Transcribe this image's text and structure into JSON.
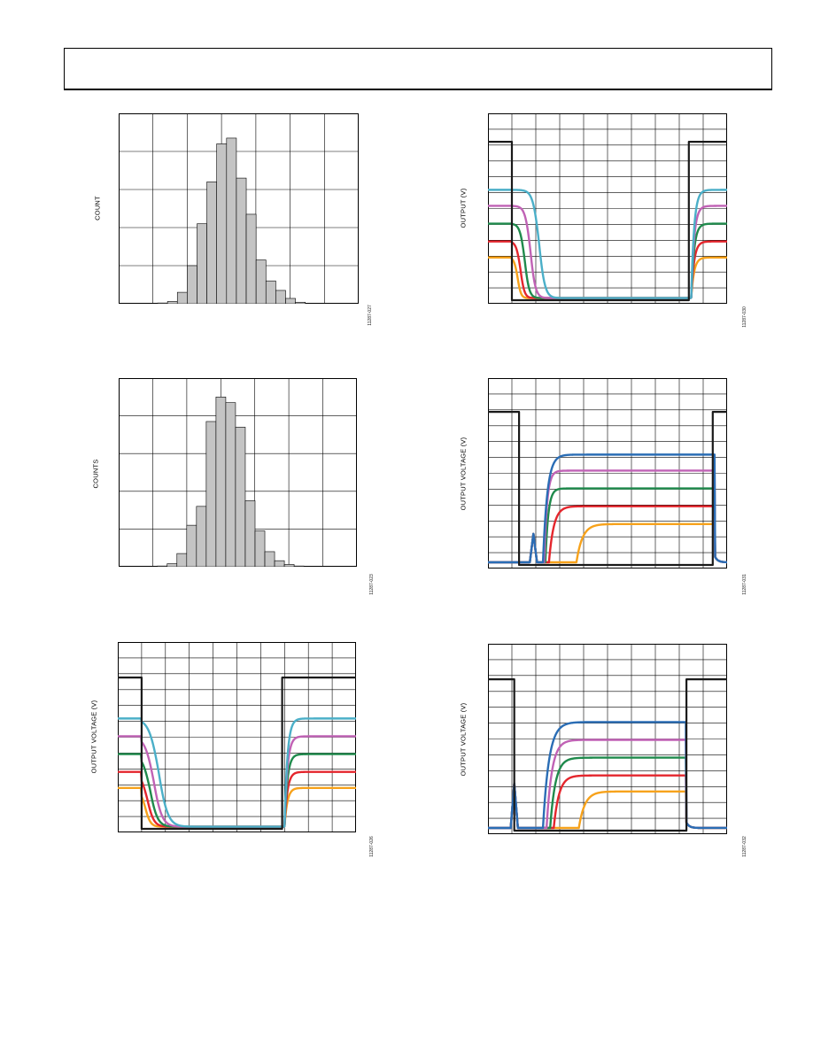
{
  "header": {
    "title": ""
  },
  "colors": {
    "black": "#1a1a1a",
    "cyan": "#4bafc8",
    "magenta": "#c062b5",
    "green": "#1f8a4c",
    "red": "#e4262d",
    "orange": "#f7a21b",
    "blue": "#2a6db5",
    "bar": "#c4c4c4",
    "grid": "#000000"
  },
  "charts": [
    {
      "id": "hist-count",
      "ylabel": "COUNT",
      "figid": "11287-027",
      "chart_data": {
        "type": "bar",
        "xlabel": "",
        "ylabel": "COUNT",
        "grid": true,
        "ylim": [
          0,
          5
        ],
        "values": [
          0.02,
          0.06,
          0.3,
          1.0,
          2.1,
          3.2,
          4.2,
          4.35,
          3.3,
          2.35,
          1.15,
          0.6,
          0.35,
          0.14,
          0.04
        ]
      }
    },
    {
      "id": "hist-counts",
      "ylabel": "COUNTS",
      "figid": "11287-023",
      "chart_data": {
        "type": "bar",
        "xlabel": "",
        "ylabel": "COUNTS",
        "grid": true,
        "ylim": [
          0,
          5
        ],
        "values": [
          0.02,
          0.08,
          0.35,
          1.1,
          1.6,
          3.85,
          4.5,
          4.35,
          3.7,
          1.75,
          0.95,
          0.4,
          0.16,
          0.06,
          0.02
        ]
      }
    },
    {
      "id": "falling-output",
      "ylabel": "OUTPUT (V)",
      "figid": "11287-030",
      "chart_data": {
        "type": "line",
        "xlabel": "",
        "ylabel": "OUTPUT (V)",
        "grid": true,
        "ylim": [
          0,
          10
        ],
        "xlim": [
          0,
          10
        ],
        "series": [
          {
            "color": "black",
            "kind": "square",
            "edge1": 1.0,
            "edge2": 8.4,
            "hi": 8.9,
            "lo": 0.0
          },
          {
            "color": "cyan",
            "kind": "fall",
            "v0": 6.2,
            "t_edge": 1.0,
            "delay": 1.9,
            "tail": 0.35,
            "rise": 8.5
          },
          {
            "color": "magenta",
            "kind": "fall",
            "v0": 5.3,
            "t_edge": 1.0,
            "delay": 1.3,
            "tail": 0.3,
            "rise": 8.5
          },
          {
            "color": "green",
            "kind": "fall",
            "v0": 4.3,
            "t_edge": 1.0,
            "delay": 0.9,
            "tail": 0.27,
            "rise": 8.5
          },
          {
            "color": "red",
            "kind": "fall",
            "v0": 3.3,
            "t_edge": 1.0,
            "delay": 0.6,
            "tail": 0.24,
            "rise": 8.5
          },
          {
            "color": "orange",
            "kind": "fall",
            "v0": 2.4,
            "t_edge": 1.0,
            "delay": 0.4,
            "tail": 0.2,
            "rise": 8.5
          }
        ]
      }
    },
    {
      "id": "rising-output-1",
      "ylabel": "OUTPUT VOLTAGE (V)",
      "figid": "11287-031",
      "chart_data": {
        "type": "line",
        "xlabel": "",
        "ylabel": "OUTPUT VOLTAGE (V)",
        "grid": true,
        "ylim": [
          0,
          10
        ],
        "xlim": [
          0,
          10
        ],
        "series": [
          {
            "color": "black",
            "kind": "square",
            "edge1": 1.3,
            "edge2": 9.4,
            "hi": 8.6,
            "lo": 0.0
          },
          {
            "color": "blue",
            "kind": "rise",
            "v1": 6.2,
            "t_on": 2.3,
            "tau": 0.18,
            "spike_t": 1.9,
            "spike_h": 1.6,
            "t_off": 9.5
          },
          {
            "color": "magenta",
            "kind": "rise",
            "v1": 5.3,
            "t_on": 2.35,
            "tau": 0.12,
            "spike_t": 1.9,
            "spike_h": 1.6,
            "t_off": 9.5
          },
          {
            "color": "green",
            "kind": "rise",
            "v1": 4.3,
            "t_on": 2.4,
            "tau": 0.12,
            "spike_t": 1.9,
            "spike_h": 1.6,
            "t_off": 9.5
          },
          {
            "color": "red",
            "kind": "rise",
            "v1": 3.3,
            "t_on": 2.55,
            "tau": 0.2,
            "spike_t": 1.9,
            "spike_h": 1.6,
            "t_off": 9.5
          },
          {
            "color": "orange",
            "kind": "rise",
            "v1": 2.3,
            "t_on": 3.7,
            "tau": 0.25,
            "spike_t": 1.9,
            "spike_h": 1.6,
            "t_off": 9.5
          }
        ]
      }
    },
    {
      "id": "falling-output-voltage",
      "ylabel": "OUTPUT VOLTAGE (V)",
      "figid": "11287-026",
      "chart_data": {
        "type": "line",
        "xlabel": "",
        "ylabel": "OUTPUT VOLTAGE (V)",
        "grid": true,
        "ylim": [
          0,
          10
        ],
        "xlim": [
          0,
          10
        ],
        "series": [
          {
            "color": "black",
            "kind": "square",
            "edge1": 1.0,
            "edge2": 6.9,
            "hi": 8.5,
            "lo": 0.0
          },
          {
            "color": "cyan",
            "kind": "fall",
            "v0": 6.2,
            "t_edge": 1.0,
            "delay": 1.2,
            "tail": 0.55,
            "rise": 7.0
          },
          {
            "color": "magenta",
            "kind": "fall",
            "v0": 5.2,
            "t_edge": 1.0,
            "delay": 0.85,
            "tail": 0.5,
            "rise": 7.0
          },
          {
            "color": "green",
            "kind": "fall",
            "v0": 4.2,
            "t_edge": 1.0,
            "delay": 0.6,
            "tail": 0.45,
            "rise": 7.0
          },
          {
            "color": "red",
            "kind": "fall",
            "v0": 3.2,
            "t_edge": 1.0,
            "delay": 0.4,
            "tail": 0.4,
            "rise": 7.0
          },
          {
            "color": "orange",
            "kind": "fall",
            "v0": 2.3,
            "t_edge": 1.0,
            "delay": 0.25,
            "tail": 0.32,
            "rise": 7.0
          }
        ]
      }
    },
    {
      "id": "rising-output-2",
      "ylabel": "OUTPUT VOLTAGE (V)",
      "figid": "11287-032",
      "chart_data": {
        "type": "line",
        "xlabel": "",
        "ylabel": "OUTPUT VOLTAGE (V)",
        "grid": true,
        "ylim": [
          0,
          10
        ],
        "xlim": [
          0,
          10
        ],
        "series": [
          {
            "color": "black",
            "kind": "square",
            "edge1": 1.1,
            "edge2": 8.3,
            "hi": 8.5,
            "lo": 0.0
          },
          {
            "color": "blue",
            "kind": "rise",
            "v1": 6.1,
            "t_on": 2.3,
            "tau": 0.25,
            "spike_t": 1.1,
            "spike_h": 2.5,
            "t_off": 8.3
          },
          {
            "color": "magenta",
            "kind": "rise",
            "v1": 5.1,
            "t_on": 2.45,
            "tau": 0.22,
            "spike_t": 1.1,
            "spike_h": 2.5,
            "t_off": 8.3
          },
          {
            "color": "green",
            "kind": "rise",
            "v1": 4.1,
            "t_on": 2.6,
            "tau": 0.22,
            "spike_t": 1.1,
            "spike_h": 2.5,
            "t_off": 8.3
          },
          {
            "color": "red",
            "kind": "rise",
            "v1": 3.1,
            "t_on": 2.75,
            "tau": 0.22,
            "spike_t": 1.1,
            "spike_h": 2.5,
            "t_off": 8.3
          },
          {
            "color": "orange",
            "kind": "rise",
            "v1": 2.2,
            "t_on": 3.8,
            "tau": 0.25,
            "spike_t": 1.1,
            "spike_h": 2.5,
            "t_off": 8.3
          }
        ]
      }
    }
  ]
}
